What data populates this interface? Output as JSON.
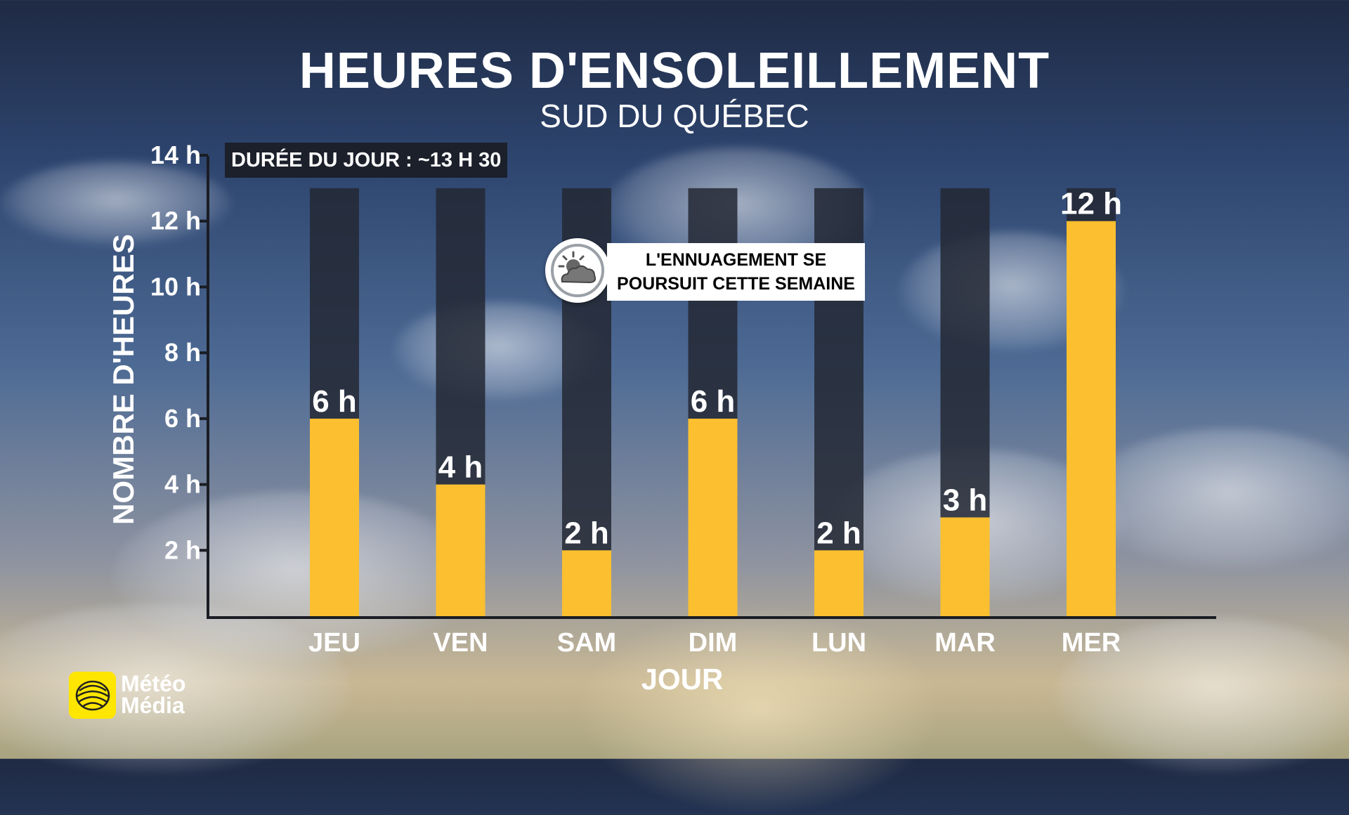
{
  "title": "HEURES D'ENSOLEILLEMENT",
  "subtitle": "SUD DU QUÉBEC",
  "daylength_label": "DURÉE DU JOUR : ~13 H 30",
  "note": {
    "line1": "L'ENNUAGEMENT SE",
    "line2": "POURSUIT CETTE SEMAINE",
    "icon": "cloud-sun-icon"
  },
  "logo": {
    "line1": "Météo",
    "line2": "Média",
    "icon": "globe-icon"
  },
  "colors": {
    "sun_bar": "#fbbf30",
    "day_bar": "#232834",
    "accent_logo": "#ffe600"
  },
  "chart_data": {
    "type": "bar",
    "xlabel": "JOUR",
    "ylabel": "NOMBRE D'HEURES",
    "categories": [
      "JEU",
      "VEN",
      "SAM",
      "DIM",
      "LUN",
      "MAR",
      "MER"
    ],
    "series": [
      {
        "values": [
          6,
          4,
          2,
          6,
          2,
          3,
          12
        ]
      }
    ],
    "value_labels": [
      "6 h",
      "4 h",
      "2 h",
      "6 h",
      "2 h",
      "3 h",
      "12 h"
    ],
    "day_length": 13,
    "ylim": [
      0,
      14
    ],
    "yticks": [
      2,
      4,
      6,
      8,
      10,
      12,
      14
    ],
    "ytick_labels": [
      "2 h",
      "4 h",
      "6 h",
      "8 h",
      "10 h",
      "12 h",
      "14 h"
    ],
    "grid": false
  }
}
